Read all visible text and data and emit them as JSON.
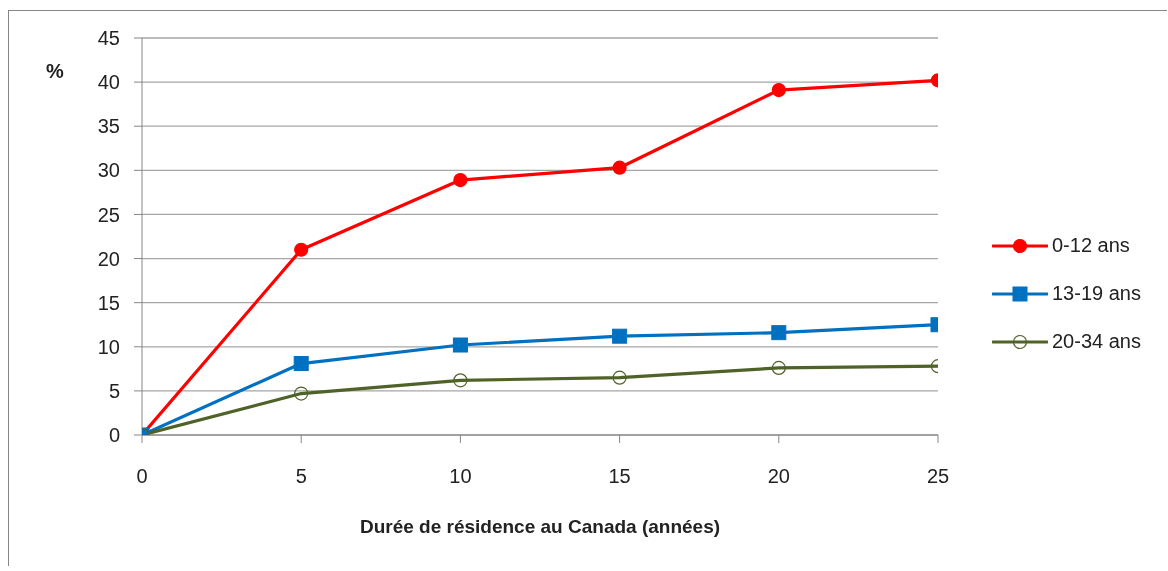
{
  "chart_data": {
    "type": "line",
    "xlabel": "Durée de résidence au Canada (années)",
    "ylabel": "%",
    "x": [
      0,
      5,
      10,
      15,
      20,
      25
    ],
    "xlim": [
      0,
      25
    ],
    "xticks": [
      0,
      5,
      10,
      15,
      20,
      25
    ],
    "ylim": [
      0,
      45
    ],
    "yticks": [
      0,
      5,
      10,
      15,
      20,
      25,
      30,
      35,
      40,
      45
    ],
    "grid": "y",
    "legend": "right",
    "line_style": "solid",
    "series": [
      {
        "name": "0-12 ans",
        "color": "#ff0000",
        "marker": "circle",
        "values": [
          0,
          21.0,
          28.9,
          30.3,
          39.1,
          40.2
        ]
      },
      {
        "name": "13-19 ans",
        "color": "#0070c0",
        "marker": "square",
        "values": [
          0,
          8.1,
          10.2,
          11.2,
          11.6,
          12.5
        ]
      },
      {
        "name": "20-34 ans",
        "color": "#4f6228",
        "marker": "circle-open",
        "values": [
          0,
          4.7,
          6.2,
          6.5,
          7.6,
          7.8
        ]
      }
    ]
  }
}
